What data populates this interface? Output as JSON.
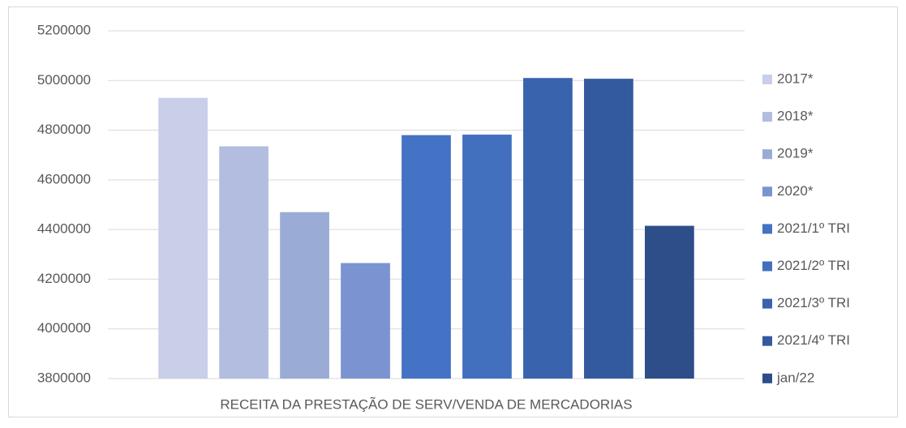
{
  "chart_data": {
    "type": "bar",
    "categories": [
      "RECEITA DA PRESTAÇÃO DE SERV/VENDA DE MERCADORIAS"
    ],
    "series": [
      {
        "name": "2017*",
        "color": "#c9cfe9",
        "values": [
          4930000
        ]
      },
      {
        "name": "2018*",
        "color": "#b3bde0",
        "values": [
          4735000
        ]
      },
      {
        "name": "2019*",
        "color": "#9aabd6",
        "values": [
          4470000
        ]
      },
      {
        "name": "2020*",
        "color": "#7b93d0",
        "values": [
          4265000
        ]
      },
      {
        "name": "2021/1º TRI",
        "color": "#4472c4",
        "values": [
          4780000
        ]
      },
      {
        "name": "2021/2º TRI",
        "color": "#4270be",
        "values": [
          4782000
        ]
      },
      {
        "name": "2021/3º TRI",
        "color": "#3a63ad",
        "values": [
          5010000
        ]
      },
      {
        "name": "2021/4º TRI",
        "color": "#335a9e",
        "values": [
          5007000
        ]
      },
      {
        "name": "jan/22",
        "color": "#2e4e8a",
        "values": [
          4415000
        ]
      }
    ],
    "ylim": [
      3800000,
      5200000
    ],
    "yticks": [
      3800000,
      4000000,
      4200000,
      4400000,
      4600000,
      4800000,
      5000000,
      5200000
    ],
    "grid": true,
    "legend": "right"
  }
}
